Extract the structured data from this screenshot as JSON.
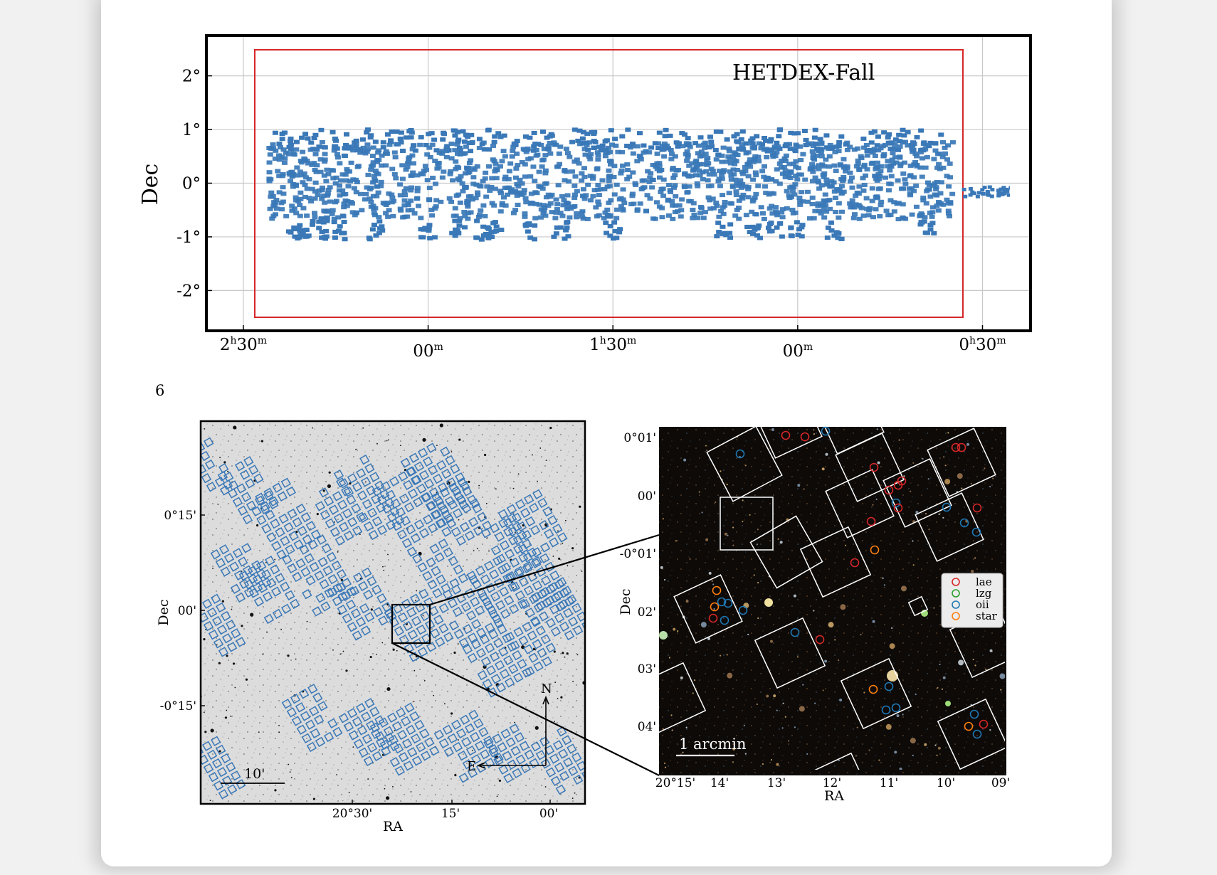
{
  "page_number": "6",
  "colors": {
    "survey_fields": "#3a78b7",
    "survey_boundary": "#d62728",
    "shot_outline": "#3a78b7",
    "ifu_box": "#ffffff",
    "legend": {
      "lae": "#d62728",
      "lzg": "#2ca02c",
      "oii": "#1f77b4",
      "star": "#ff7f0e"
    }
  },
  "top_figure": {
    "label": "HETDEX-Fall",
    "ylabel": "Dec",
    "y_ticks": [
      "2°",
      "1°",
      "0°",
      "-1°",
      "-2°"
    ],
    "x_ticks": [
      {
        "hours": "2",
        "h": "h",
        "minutes": "30",
        "m": "m"
      },
      {
        "hours": "",
        "h": "",
        "minutes": "00",
        "m": "m"
      },
      {
        "hours": "1",
        "h": "h",
        "minutes": "30",
        "m": "m"
      },
      {
        "hours": "",
        "h": "",
        "minutes": "00",
        "m": "m"
      },
      {
        "hours": "0",
        "h": "h",
        "minutes": "30",
        "m": "m"
      }
    ]
  },
  "chart_data": {
    "type": "scatter",
    "title": "HETDEX-Fall",
    "xlabel": "",
    "ylabel": "Dec",
    "xlim_hours": [
      2.6,
      0.37
    ],
    "ylim_deg": [
      -2.75,
      2.75
    ],
    "grid": true,
    "survey_boundary": {
      "ra_hours": [
        2.37,
        0.52
      ],
      "dec_deg": [
        -2.5,
        2.5
      ]
    },
    "observed_shots_dec_range": [
      -1.0,
      1.0
    ],
    "observed_shots_ra_range_hours": [
      2.43,
      0.38
    ]
  },
  "left_panel": {
    "xlabel": "RA",
    "ylabel": "Dec",
    "x_ticks": [
      "20°30'",
      "15'",
      "00'"
    ],
    "y_ticks": [
      "0°15'",
      "00'",
      "-0°15'"
    ],
    "scale_label": "10'",
    "compass_north": "N",
    "compass_east": "E"
  },
  "right_panel": {
    "xlabel": "RA",
    "ylabel": "Dec",
    "x_ticks": [
      "20°15'",
      "14'",
      "13'",
      "12'",
      "11'",
      "10'",
      "09'"
    ],
    "y_ticks": [
      "0°01'",
      "00'",
      "-0°01'",
      "02'",
      "03'",
      "04'"
    ],
    "scale_label": "1 arcmin",
    "legend": [
      "lae",
      "lzg",
      "oii",
      "star"
    ]
  }
}
